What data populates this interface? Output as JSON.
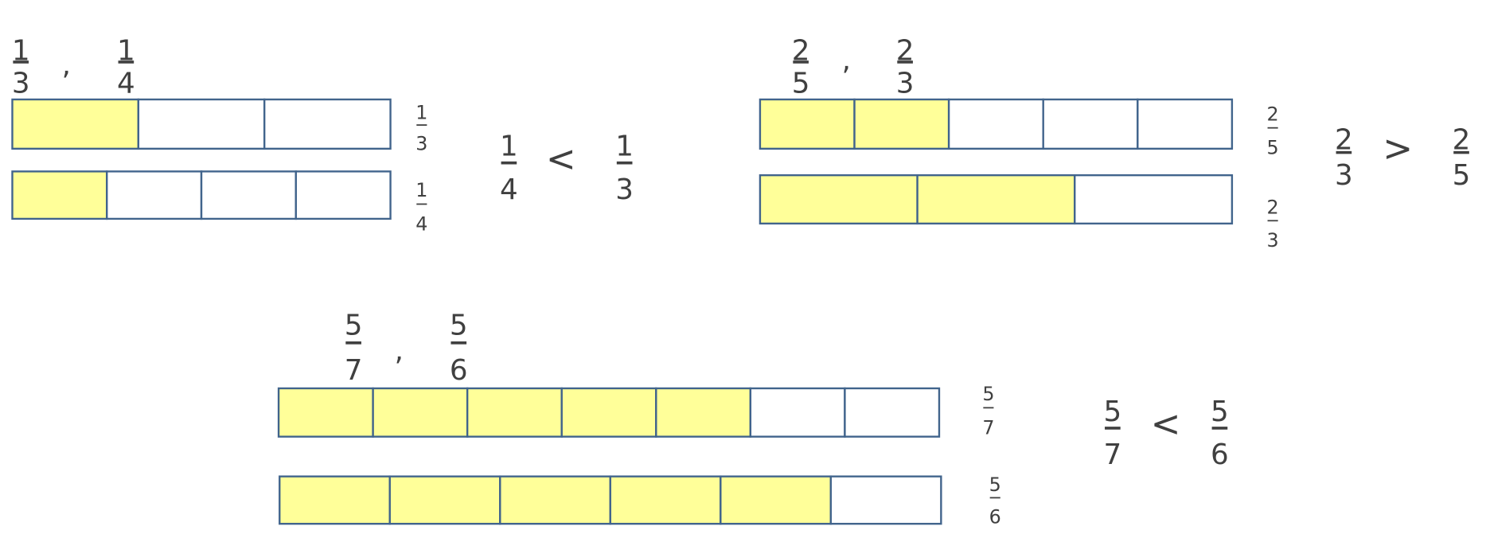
{
  "colors": {
    "filled": "#FFFF99",
    "empty": "#FFFFFF",
    "border": "#41648C",
    "text": "#404040"
  },
  "groups": [
    {
      "pair": [
        {
          "num": "1",
          "den": "3"
        },
        {
          "num": "1",
          "den": "4"
        }
      ],
      "separator": ",",
      "bars": [
        {
          "parts": 3,
          "shaded": 1,
          "label": {
            "num": "1",
            "den": "3"
          }
        },
        {
          "parts": 4,
          "shaded": 1,
          "label": {
            "num": "1",
            "den": "4"
          }
        }
      ],
      "comparison": {
        "left": {
          "num": "1",
          "den": "4"
        },
        "operator": "<",
        "right": {
          "num": "1",
          "den": "3"
        }
      }
    },
    {
      "pair": [
        {
          "num": "2",
          "den": "5"
        },
        {
          "num": "2",
          "den": "3"
        }
      ],
      "separator": ",",
      "bars": [
        {
          "parts": 5,
          "shaded": 2,
          "label": {
            "num": "2",
            "den": "5"
          }
        },
        {
          "parts": 3,
          "shaded": 2,
          "label": {
            "num": "2",
            "den": "3"
          }
        }
      ],
      "comparison": {
        "left": {
          "num": "2",
          "den": "3"
        },
        "operator": ">",
        "right": {
          "num": "2",
          "den": "5"
        }
      }
    },
    {
      "pair": [
        {
          "num": "5",
          "den": "7"
        },
        {
          "num": "5",
          "den": "6"
        }
      ],
      "separator": ",",
      "bars": [
        {
          "parts": 7,
          "shaded": 5,
          "label": {
            "num": "5",
            "den": "7"
          }
        },
        {
          "parts": 6,
          "shaded": 5,
          "label": {
            "num": "5",
            "den": "6"
          }
        }
      ],
      "comparison": {
        "left": {
          "num": "5",
          "den": "7"
        },
        "operator": "<",
        "right": {
          "num": "5",
          "den": "6"
        }
      }
    }
  ]
}
